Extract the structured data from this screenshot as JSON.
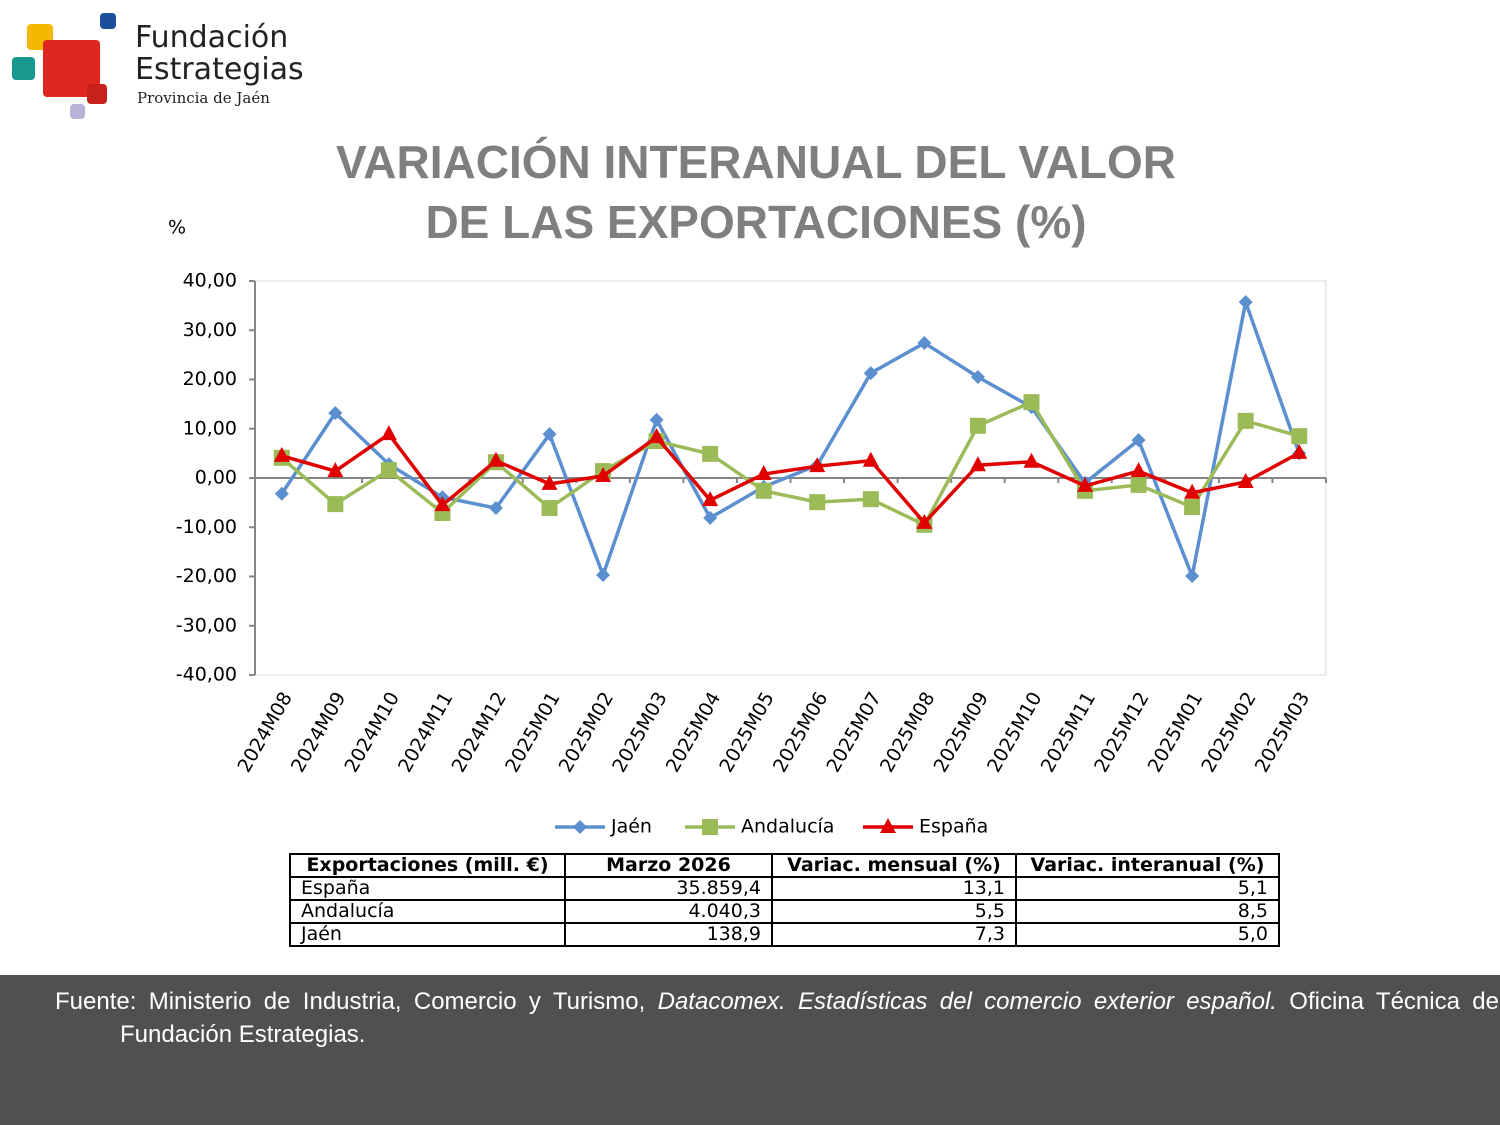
{
  "logo": {
    "name_lines": [
      "Fundación",
      "Estrategias"
    ],
    "subtitle": "Provincia de Jaén"
  },
  "chart_data": {
    "type": "line",
    "title": [
      "VARIACIÓN INTERANUAL DEL VALOR",
      "DE LAS EXPORTACIONES (%)"
    ],
    "y_label": "%",
    "categories": [
      "2024M08",
      "2024M09",
      "2024M10",
      "2024M11",
      "2024M12",
      "2025M01",
      "2025M02",
      "2025M03",
      "2025M04",
      "2025M05",
      "2025M06",
      "2025M07",
      "2025M08",
      "2025M09",
      "2025M10",
      "2025M11",
      "2025M12",
      "2025M01",
      "2025M02",
      "2025M03"
    ],
    "series": [
      {
        "name": "Jaén",
        "color": "#5b8fd0",
        "marker": "diamond",
        "values": [
          -3.2,
          13.2,
          2.8,
          -3.9,
          -6.1,
          8.9,
          -19.7,
          11.8,
          -8.1,
          -1.8,
          2.6,
          21.3,
          27.4,
          20.5,
          14.4,
          -1.0,
          7.7,
          -19.9,
          35.7,
          5.0
        ]
      },
      {
        "name": "Andalucía",
        "color": "#9bbb59",
        "marker": "square",
        "values": [
          4.1,
          -5.3,
          1.6,
          -7.1,
          3.2,
          -6.1,
          1.4,
          7.5,
          4.9,
          -2.6,
          -4.9,
          -4.3,
          -9.5,
          10.6,
          15.4,
          -2.6,
          -1.4,
          -5.9,
          11.6,
          8.5
        ]
      },
      {
        "name": "España",
        "color": "#e00000",
        "marker": "triangle",
        "values": [
          4.5,
          1.4,
          8.9,
          -5.5,
          3.5,
          -1.2,
          0.4,
          8.3,
          -4.5,
          0.8,
          2.4,
          3.5,
          -9.1,
          2.6,
          3.3,
          -1.6,
          1.4,
          -3.0,
          -0.8,
          5.1
        ]
      }
    ],
    "ylim": [
      -40,
      40
    ],
    "yticks": [
      {
        "value": 40,
        "label": "40,00"
      },
      {
        "value": 30,
        "label": "30,00"
      },
      {
        "value": 20,
        "label": "20,00"
      },
      {
        "value": 10,
        "label": "10,00"
      },
      {
        "value": 0,
        "label": "0,00"
      },
      {
        "value": -10,
        "label": "-10,00"
      },
      {
        "value": -20,
        "label": "-20,00"
      },
      {
        "value": -30,
        "label": "-30,00"
      },
      {
        "value": -40,
        "label": "-40,00"
      }
    ],
    "grid": false,
    "legend": "bottom"
  },
  "table": {
    "header": [
      "Exportaciones (mill. €)",
      "Marzo 2026",
      "Variac. mensual (%)",
      "Variac. interanual (%)"
    ],
    "rows": [
      [
        "España",
        "35.859,4",
        "13,1",
        "5,1"
      ],
      [
        "Andalucía",
        "4.040,3",
        "5,5",
        "8,5"
      ],
      [
        "Jaén",
        "138,9",
        "7,3",
        "5,0"
      ]
    ]
  },
  "footer": {
    "parts": [
      "Fuente: Ministerio de Industria, Comercio y Turismo, ",
      "Datacomex. Estadísticas del comercio exterior español.",
      " Oficina Técnica de la Fundación Estrategias."
    ]
  }
}
